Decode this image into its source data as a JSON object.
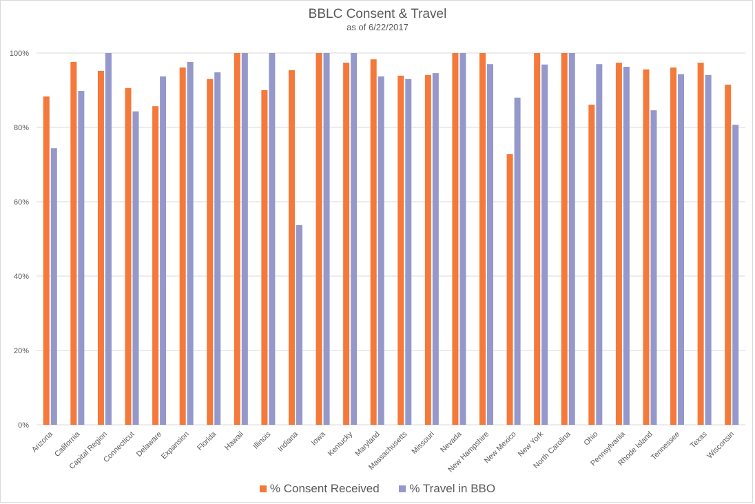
{
  "chart_data": {
    "type": "bar",
    "title": "BBLC Consent & Travel",
    "subtitle": "as of 6/22/2017",
    "xlabel": "",
    "ylabel": "",
    "ylim": [
      0,
      1
    ],
    "yticks": [
      0,
      0.2,
      0.4,
      0.6,
      0.8,
      1.0
    ],
    "ytick_labels": [
      "0%",
      "20%",
      "40%",
      "60%",
      "80%",
      "100%"
    ],
    "grid": true,
    "legend_position": "bottom",
    "categories": [
      "Arizona",
      "California",
      "Capital Region",
      "Connecticut",
      "Delaware",
      "Expansion",
      "Florida",
      "Hawaii",
      "Illinois",
      "Indiana",
      "Iowa",
      "Kentucky",
      "Maryland",
      "Massachusetts",
      "Missouri",
      "Nevada",
      "New Hampshire",
      "New Mexico",
      "New York",
      "North Carolina",
      "Ohio",
      "Pennsylvania",
      "Rhode Island",
      "Tennessee",
      "Texas",
      "Wisconsin"
    ],
    "series": [
      {
        "name": "% Consent Received",
        "color": "#F4793A",
        "values": [
          0.883,
          0.976,
          0.952,
          0.906,
          0.857,
          0.961,
          0.93,
          1.0,
          0.9,
          0.954,
          1.0,
          0.974,
          0.983,
          0.939,
          0.941,
          1.0,
          1.0,
          0.728,
          1.0,
          1.0,
          0.861,
          0.974,
          0.956,
          0.961,
          0.974,
          0.915
        ]
      },
      {
        "name": "% Travel in BBO",
        "color": "#9498CB",
        "values": [
          0.744,
          0.898,
          1.0,
          0.843,
          0.937,
          0.976,
          0.948,
          1.0,
          1.0,
          0.537,
          1.0,
          1.0,
          0.937,
          0.93,
          0.946,
          1.0,
          0.97,
          0.88,
          0.969,
          1.0,
          0.97,
          0.963,
          0.846,
          0.943,
          0.941,
          0.807
        ]
      }
    ]
  }
}
